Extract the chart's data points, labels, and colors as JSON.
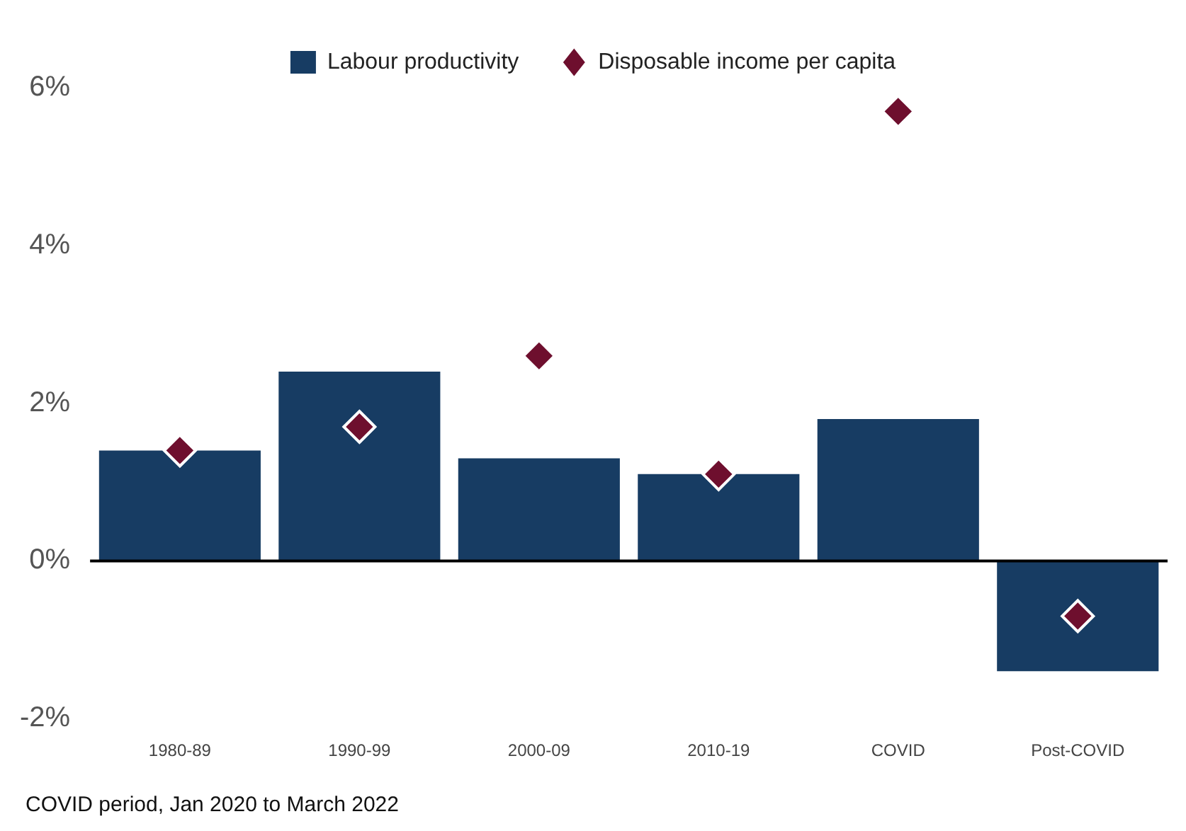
{
  "chart_data": {
    "type": "bar",
    "categories": [
      "1980-89",
      "1990-99",
      "2000-09",
      "2010-19",
      "COVID",
      "Post-COVID"
    ],
    "series": [
      {
        "name": "Labour productivity",
        "color": "#173c63",
        "values": [
          1.4,
          2.4,
          1.3,
          1.1,
          1.8,
          -1.4
        ]
      },
      {
        "name": "Disposable income per capita",
        "type": "scatter",
        "color": "#6e0f2e",
        "marker": "diamond",
        "values": [
          1.4,
          1.7,
          2.6,
          1.1,
          5.7,
          -0.7
        ]
      }
    ],
    "ylim": [
      -2,
      6
    ],
    "yticks": [
      {
        "value": -2,
        "label": "-2%"
      },
      {
        "value": 0,
        "label": "0%"
      },
      {
        "value": 2,
        "label": "2%"
      },
      {
        "value": 4,
        "label": "4%"
      },
      {
        "value": 6,
        "label": "6%"
      }
    ],
    "ref_lines": [
      {
        "axis": "y",
        "value": 0,
        "color": "#000000"
      }
    ],
    "grid": false,
    "legend": "top",
    "annotations": [
      "COVID period, Jan 2020 to March 2022"
    ]
  }
}
